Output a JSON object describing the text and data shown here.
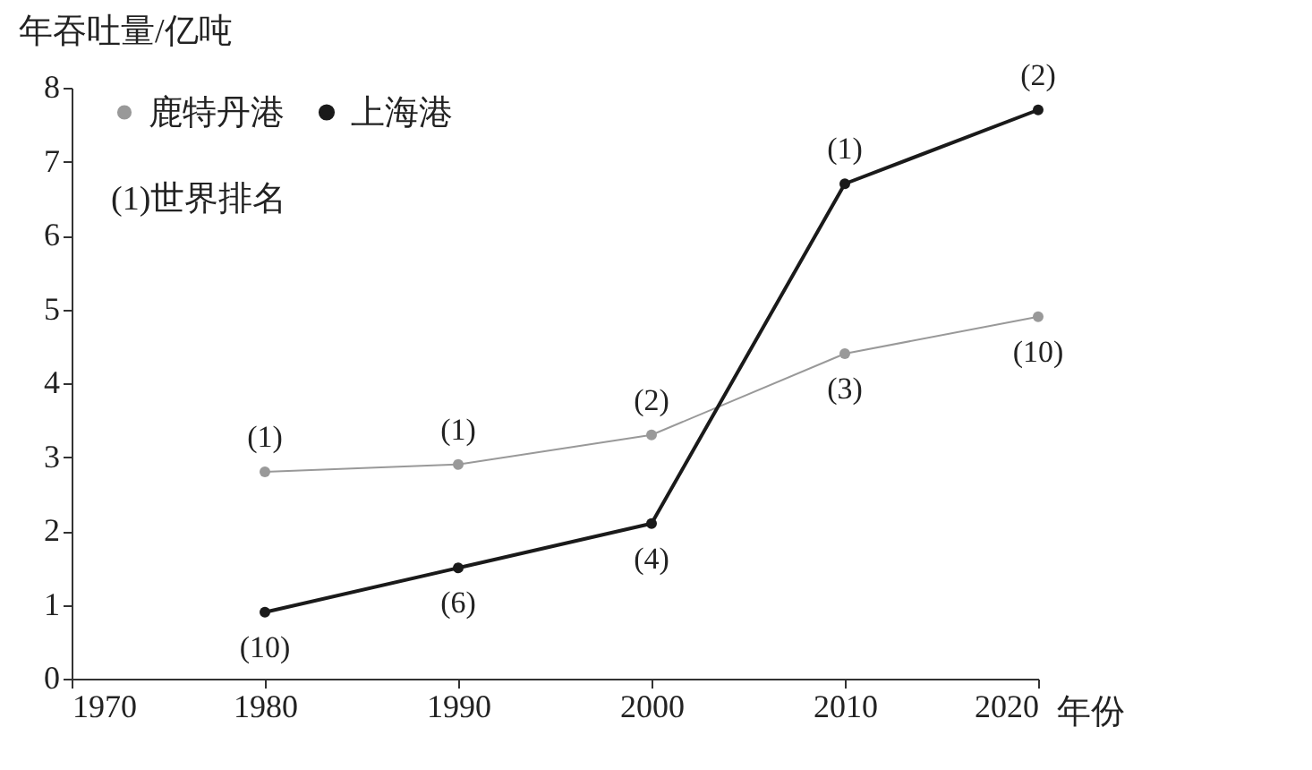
{
  "chart_data": {
    "type": "line",
    "xlabel": "年份",
    "ylabel": "年吞吐量/亿吨",
    "x": [
      1980,
      1990,
      2000,
      2010,
      2020
    ],
    "series": [
      {
        "name": "鹿特丹港",
        "color": "#999999",
        "values": [
          2.8,
          2.9,
          3.3,
          4.4,
          4.9
        ]
      },
      {
        "name": "上海港",
        "color": "#1a1a1a",
        "values": [
          0.9,
          1.5,
          2.1,
          6.7,
          7.7
        ]
      }
    ],
    "annotations": [
      "(1)世界排名",
      {
        "text": "(1)",
        "x": 1980,
        "y": 2.8
      },
      {
        "text": "(1)",
        "x": 1990,
        "y": 2.9
      },
      {
        "text": "(2)",
        "x": 2000,
        "y": 3.3
      },
      {
        "text": "(3)",
        "x": 2010,
        "y": 4.4
      },
      {
        "text": "(10)",
        "x": 2020,
        "y": 4.9
      },
      {
        "text": "(10)",
        "x": 1980,
        "y": 0.9
      },
      {
        "text": "(6)",
        "x": 1990,
        "y": 1.5
      },
      {
        "text": "(4)",
        "x": 2000,
        "y": 2.1
      },
      {
        "text": "(1)",
        "x": 2010,
        "y": 6.7
      },
      {
        "text": "(2)",
        "x": 2020,
        "y": 7.7
      }
    ],
    "xlim": [
      1970,
      2020
    ],
    "xticks": [
      1970,
      1980,
      1990,
      2000,
      2010,
      2020
    ],
    "ylim": [
      0,
      8
    ],
    "yticks": [
      0,
      1,
      2,
      3,
      4,
      5,
      6,
      7,
      8
    ],
    "grid": false,
    "legend": "top left",
    "marker": "circle",
    "line_style": "solid"
  }
}
